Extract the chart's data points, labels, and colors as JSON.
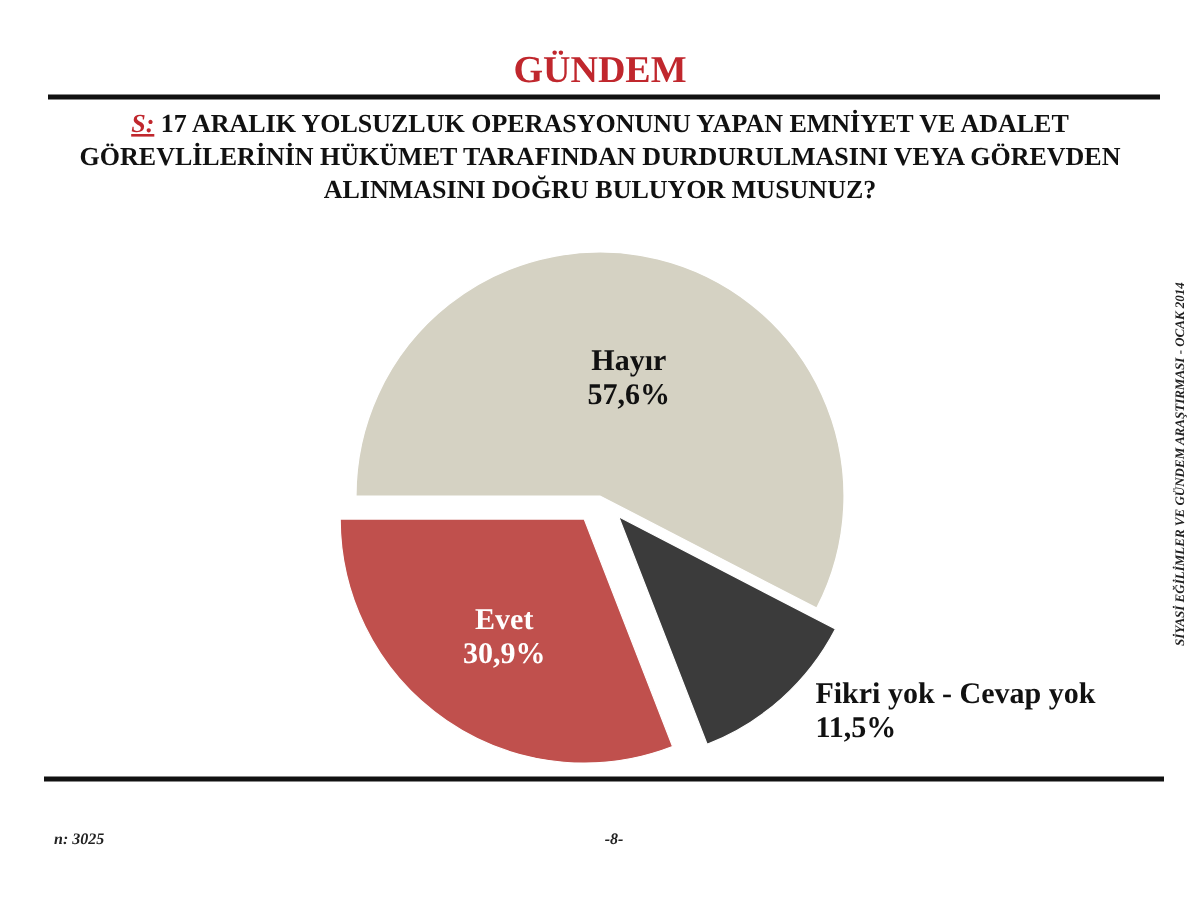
{
  "chart_data": {
    "type": "pie",
    "title": "GÜNDEM",
    "subtitle": "S: 17 ARALIK YOLSUZLUK OPERASYONUNU YAPAN EMNİYET VE ADALET GÖREVLİLERİNİN HÜKÜMET TARAFINDAN DURDURULMASINI VEYA GÖREVDEN ALINMASINI DOĞRU BULUYOR MUSUNUZ?",
    "categories": [
      "Hayır",
      "Fikri yok - Cevap yok",
      "Evet"
    ],
    "values": [
      57.6,
      11.5,
      30.9
    ],
    "colors": [
      "#d5d2c3",
      "#3b3b3b",
      "#c0504d"
    ],
    "value_labels": [
      "57,6%",
      "11,5%",
      "30,9%"
    ],
    "annotations": [
      "SİYASİ EĞİLİMLER VE GÜNDEM ARAŞTIRMASI - OCAK 2014",
      "n: 3025",
      "-8-"
    ]
  }
}
